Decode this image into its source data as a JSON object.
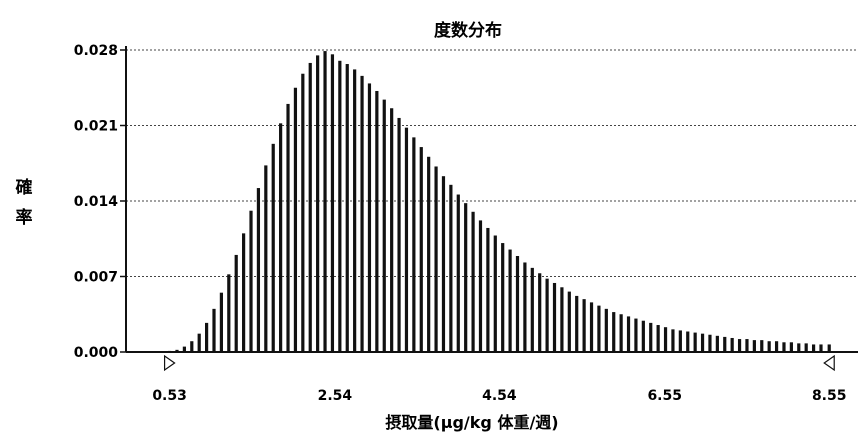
{
  "chart_data": {
    "type": "bar",
    "title": "度数分布",
    "xlabel": "摂取量(μg/kg 体重/週)",
    "ylabel": "確率",
    "xlim": [
      0.0,
      8.9
    ],
    "ylim": [
      0.0,
      0.028
    ],
    "x_ticks": [
      "0.53",
      "2.54",
      "4.54",
      "6.55",
      "8.55"
    ],
    "y_ticks": [
      "0.000",
      "0.007",
      "0.014",
      "0.021",
      "0.028"
    ],
    "grid": "horizontal-dotted",
    "bar_color": "#111111",
    "x": [
      0.53,
      0.62,
      0.71,
      0.8,
      0.89,
      0.98,
      1.07,
      1.16,
      1.25,
      1.34,
      1.43,
      1.52,
      1.61,
      1.7,
      1.79,
      1.88,
      1.97,
      2.06,
      2.15,
      2.24,
      2.33,
      2.42,
      2.51,
      2.6,
      2.69,
      2.78,
      2.87,
      2.96,
      3.05,
      3.14,
      3.23,
      3.32,
      3.41,
      3.5,
      3.59,
      3.68,
      3.77,
      3.86,
      3.95,
      4.04,
      4.13,
      4.22,
      4.31,
      4.4,
      4.49,
      4.58,
      4.67,
      4.76,
      4.85,
      4.94,
      5.03,
      5.12,
      5.21,
      5.3,
      5.39,
      5.48,
      5.57,
      5.66,
      5.75,
      5.84,
      5.93,
      6.02,
      6.11,
      6.2,
      6.29,
      6.38,
      6.47,
      6.56,
      6.65,
      6.74,
      6.83,
      6.92,
      7.01,
      7.1,
      7.19,
      7.28,
      7.37,
      7.46,
      7.55,
      7.64,
      7.73,
      7.82,
      7.91,
      8.0,
      8.09,
      8.18,
      8.27,
      8.36,
      8.45,
      8.55
    ],
    "values": [
      0.0001,
      0.0002,
      0.0005,
      0.001,
      0.0017,
      0.0027,
      0.004,
      0.0055,
      0.0072,
      0.009,
      0.011,
      0.0131,
      0.0152,
      0.0173,
      0.0193,
      0.0212,
      0.023,
      0.0245,
      0.0258,
      0.0268,
      0.0275,
      0.0279,
      0.0276,
      0.027,
      0.0267,
      0.0262,
      0.0256,
      0.0249,
      0.0242,
      0.0234,
      0.0226,
      0.0217,
      0.0208,
      0.0199,
      0.019,
      0.0181,
      0.0172,
      0.0163,
      0.0155,
      0.0146,
      0.0138,
      0.013,
      0.0122,
      0.0115,
      0.0108,
      0.0101,
      0.0095,
      0.0089,
      0.0083,
      0.0078,
      0.0073,
      0.0068,
      0.0064,
      0.006,
      0.0056,
      0.0052,
      0.0049,
      0.0046,
      0.0043,
      0.004,
      0.0037,
      0.0035,
      0.0033,
      0.0031,
      0.0029,
      0.0027,
      0.0025,
      0.0023,
      0.0021,
      0.002,
      0.0019,
      0.0018,
      0.0017,
      0.0016,
      0.0015,
      0.0014,
      0.0013,
      0.0012,
      0.0012,
      0.0011,
      0.0011,
      0.001,
      0.001,
      0.0009,
      0.0009,
      0.0008,
      0.0008,
      0.0007,
      0.0007,
      0.0007
    ]
  }
}
